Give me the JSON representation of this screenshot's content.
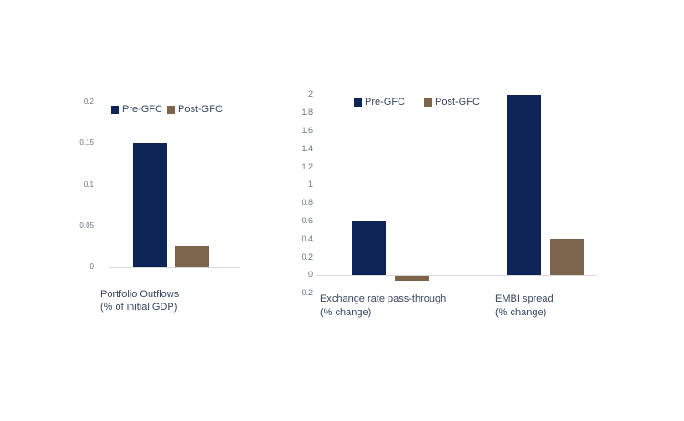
{
  "page": {
    "background": "#ffffff"
  },
  "colors": {
    "pre_gfc": "#0f2456",
    "post_gfc": "#7d654b",
    "axis_line": "#d9d9d9",
    "tick_text": "#6a7280",
    "label_text": "#36455f"
  },
  "chart_data": [
    {
      "type": "bar",
      "id": "portfolio",
      "title": "",
      "categories": [
        "Portfolio Outflows\n(% of initial GDP)"
      ],
      "series": [
        {
          "name": "Pre-GFC",
          "color_key": "pre_gfc",
          "values": [
            0.15
          ]
        },
        {
          "name": "Post-GFC",
          "color_key": "post_gfc",
          "values": [
            0.025
          ]
        }
      ],
      "ylim": [
        0,
        0.2
      ],
      "yticks": [
        0,
        0.05,
        0.1,
        0.15,
        0.2
      ],
      "legend_position": "top",
      "grid": false
    },
    {
      "type": "bar",
      "id": "impact",
      "title": "",
      "categories": [
        "Exchange rate pass-through\n(% change)",
        "EMBI spread\n(% change)"
      ],
      "series": [
        {
          "name": "Pre-GFC",
          "color_key": "pre_gfc",
          "values": [
            0.6,
            2.0
          ]
        },
        {
          "name": "Post-GFC",
          "color_key": "post_gfc",
          "values": [
            -0.05,
            0.4
          ]
        }
      ],
      "ylim": [
        -0.2,
        2
      ],
      "yticks": [
        -0.2,
        0,
        0.2,
        0.4,
        0.6,
        0.8,
        1,
        1.2,
        1.4,
        1.6,
        1.8,
        2
      ],
      "legend_position": "top",
      "grid": false
    }
  ]
}
